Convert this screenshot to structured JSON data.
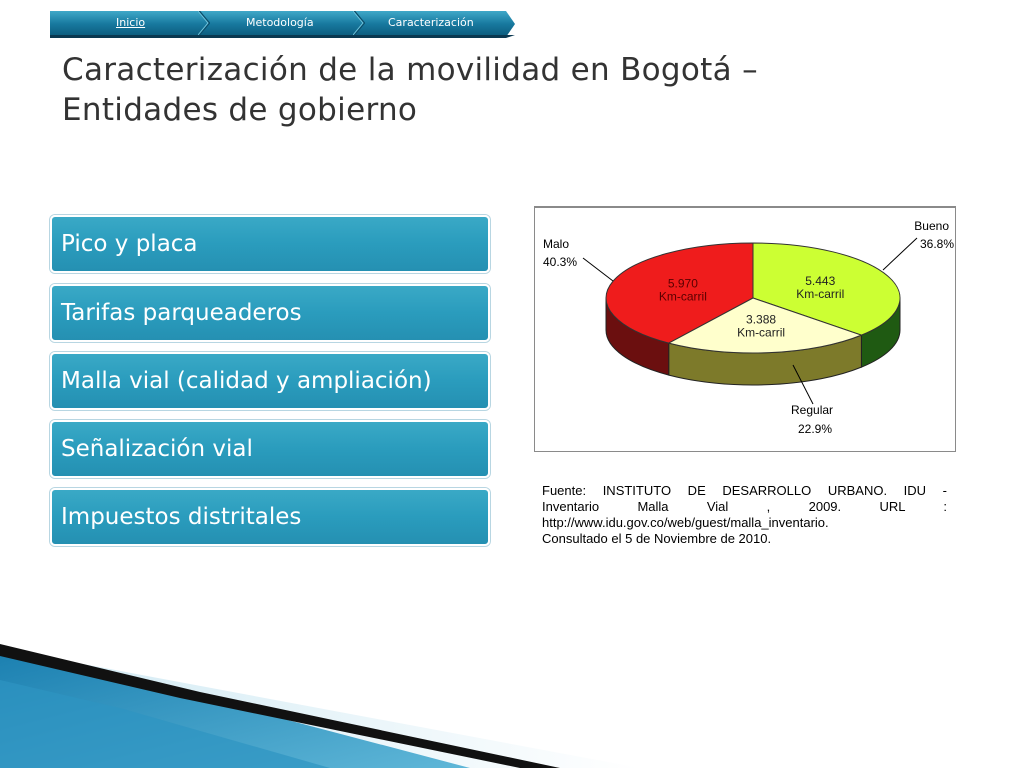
{
  "nav": {
    "items": [
      {
        "label": "Inicio"
      },
      {
        "label": "Metodología"
      },
      {
        "label": "Caracterización"
      }
    ]
  },
  "title": {
    "line1": "Caracterización de la movilidad en Bogotá –",
    "line2": "Entidades de gobierno"
  },
  "bullets": [
    "Pico y placa",
    "Tarifas parqueaderos",
    "Malla vial (calidad y ampliación)",
    "Señalización vial",
    "Impuestos distritales"
  ],
  "chart_data": {
    "type": "pie",
    "title": "",
    "slices": [
      {
        "name": "Malo",
        "percent_label": "40.3%",
        "percent": 40.3,
        "value_label": "5.970",
        "unit_label": "Km-carril",
        "color": "#ef1c1c"
      },
      {
        "name": "Bueno",
        "percent_label": "36.8%",
        "percent": 36.8,
        "value_label": "5.443",
        "unit_label": "Km-carril",
        "color": "#ccff33"
      },
      {
        "name": "Regular",
        "percent_label": "22.9%",
        "percent": 22.9,
        "value_label": "3.388",
        "unit_label": "Km-carril",
        "color": "#ffffcc"
      }
    ],
    "style": "3d"
  },
  "source": {
    "lines": [
      "Fuente: INSTITUTO DE DESARROLLO URBANO. IDU -",
      "Inventario Malla Vial , 2009. URL :",
      "http://www.idu.gov.co/web/guest/malla_inventario.",
      "Consultado el 5 de Noviembre de 2010."
    ]
  },
  "colors": {
    "accent": "#2a9cbd",
    "nav_dark": "#0d5e80",
    "title_text": "#333333"
  }
}
